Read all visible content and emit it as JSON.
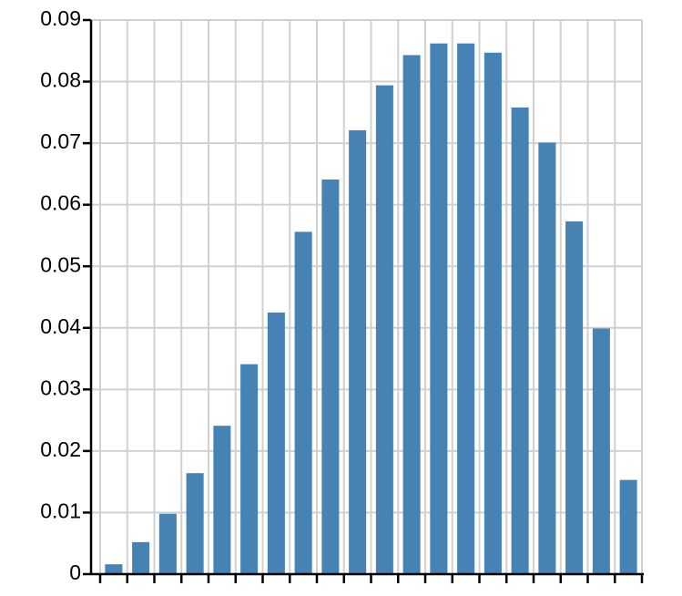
{
  "chart_data": {
    "type": "bar",
    "categories": [
      null,
      null,
      null,
      null,
      null,
      null,
      null,
      null,
      null,
      null,
      null,
      null,
      null,
      null,
      null,
      null,
      null,
      null,
      null,
      null
    ],
    "values": [
      0.0016,
      0.0052,
      0.0098,
      0.0164,
      0.0241,
      0.0341,
      0.0425,
      0.0556,
      0.0641,
      0.0721,
      0.0794,
      0.0843,
      0.0862,
      0.0862,
      0.0847,
      0.0758,
      0.0701,
      0.0573,
      0.0399,
      0.0153
    ],
    "color": "#4682b4",
    "ylim": [
      0,
      0.09
    ],
    "yticks": [
      0,
      0.01,
      0.02,
      0.03,
      0.04,
      0.05,
      0.06,
      0.07,
      0.08,
      0.09
    ],
    "grid": true
  }
}
